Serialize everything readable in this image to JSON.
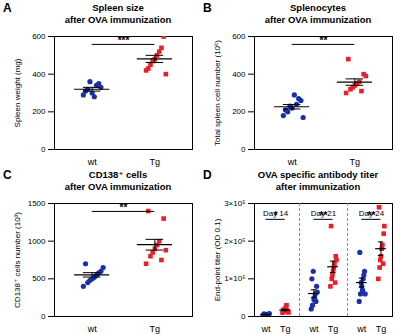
{
  "chart_data": [
    {
      "type": "scatter",
      "panel": "A",
      "title": "Spleen size\nafter OVA immunization",
      "y_label": "Spleen weight (mg)",
      "ylim": [
        0,
        600
      ],
      "yticks": [
        0,
        200,
        400,
        600
      ],
      "annotations": [
        "***"
      ],
      "series": [
        {
          "name": "wt",
          "color": "#1a2fa8",
          "marker": "circle",
          "values": [
            290,
            320,
            300,
            340,
            330,
            310,
            360,
            280,
            350
          ],
          "mean": 320,
          "sem": 10
        },
        {
          "name": "Tg",
          "color": "#e8202a",
          "marker": "square",
          "values": [
            420,
            450,
            480,
            520,
            600,
            430,
            470,
            500,
            540,
            400
          ],
          "mean": 481,
          "sem": 19
        }
      ]
    },
    {
      "type": "scatter",
      "panel": "B",
      "title": "Splenocytes\nafter OVA immunization",
      "y_label": "Total spleen cell number (10⁶)",
      "ylim": [
        0,
        600
      ],
      "yticks": [
        0,
        200,
        400,
        600
      ],
      "annotations": [
        "**"
      ],
      "series": [
        {
          "name": "wt",
          "color": "#1a2fa8",
          "marker": "circle",
          "values": [
            180,
            200,
            220,
            240,
            260,
            210,
            230,
            290,
            270,
            170
          ],
          "mean": 227,
          "sem": 12
        },
        {
          "name": "Tg",
          "color": "#e8202a",
          "marker": "square",
          "values": [
            300,
            320,
            340,
            360,
            400,
            480,
            330,
            350,
            310,
            390
          ],
          "mean": 358,
          "sem": 17
        }
      ]
    },
    {
      "type": "scatter",
      "panel": "C",
      "title": "CD138⁺ cells\nafter OVA immunization",
      "y_label": "CD138⁺ cells number (10³)",
      "ylim": [
        0,
        1500
      ],
      "yticks": [
        0,
        500,
        1000,
        1500
      ],
      "annotations": [
        "**"
      ],
      "series": [
        {
          "name": "wt",
          "color": "#1a2fa8",
          "marker": "circle",
          "values": [
            400,
            450,
            500,
            550,
            600,
            700,
            480,
            520,
            580,
            650
          ],
          "mean": 553,
          "sem": 29
        },
        {
          "name": "Tg",
          "color": "#e8202a",
          "marker": "square",
          "values": [
            700,
            800,
            900,
            1000,
            1300,
            1400,
            850,
            950,
            750,
            880
          ],
          "mean": 953,
          "sem": 71
        }
      ]
    },
    {
      "type": "scatter",
      "panel": "D",
      "title": "OVA specific antibody titer\nafter immunization",
      "y_label": "End-point titer (OD 0.1)",
      "ylim": [
        0,
        300000
      ],
      "yticks": [
        0,
        {
          "value": 100000,
          "label": "1×10⁵"
        },
        {
          "value": 200000,
          "label": "2×10⁵"
        },
        {
          "value": 300000,
          "label": "3×10⁵"
        }
      ],
      "categories": [
        "Day 14",
        "Day 21",
        "Day 24"
      ],
      "annotations": [
        "*",
        "**",
        "**"
      ],
      "series": [
        {
          "name": "wt",
          "color": "#1a2fa8",
          "marker": "circle",
          "values": [
            [
              3000,
              5000,
              4000,
              6000,
              5000,
              7000,
              4000,
              5000,
              6000,
              8000
            ],
            [
              20000,
              30000,
              45000,
              60000,
              80000,
              100000,
              120000,
              50000,
              40000,
              65000
            ],
            [
              40000,
              60000,
              80000,
              100000,
              120000,
              170000,
              90000,
              70000,
              110000,
              60000
            ]
          ],
          "mean": [
            5300,
            61000,
            90000
          ],
          "sem": [
            500,
            10000,
            12000
          ]
        },
        {
          "name": "Tg",
          "color": "#e8202a",
          "marker": "square",
          "values": [
            [
              10000,
              15000,
              20000,
              30000,
              12000,
              18000,
              14000,
              25000,
              16000,
              11000
            ],
            [
              80000,
              100000,
              120000,
              140000,
              160000,
              240000,
              110000,
              130000,
              90000,
              150000
            ],
            [
              100000,
              130000,
              160000,
              190000,
              220000,
              290000,
              150000,
              180000,
              140000,
              240000
            ]
          ],
          "mean": [
            17100,
            132000,
            180000
          ],
          "sem": [
            2000,
            15000,
            18000
          ]
        }
      ]
    }
  ]
}
